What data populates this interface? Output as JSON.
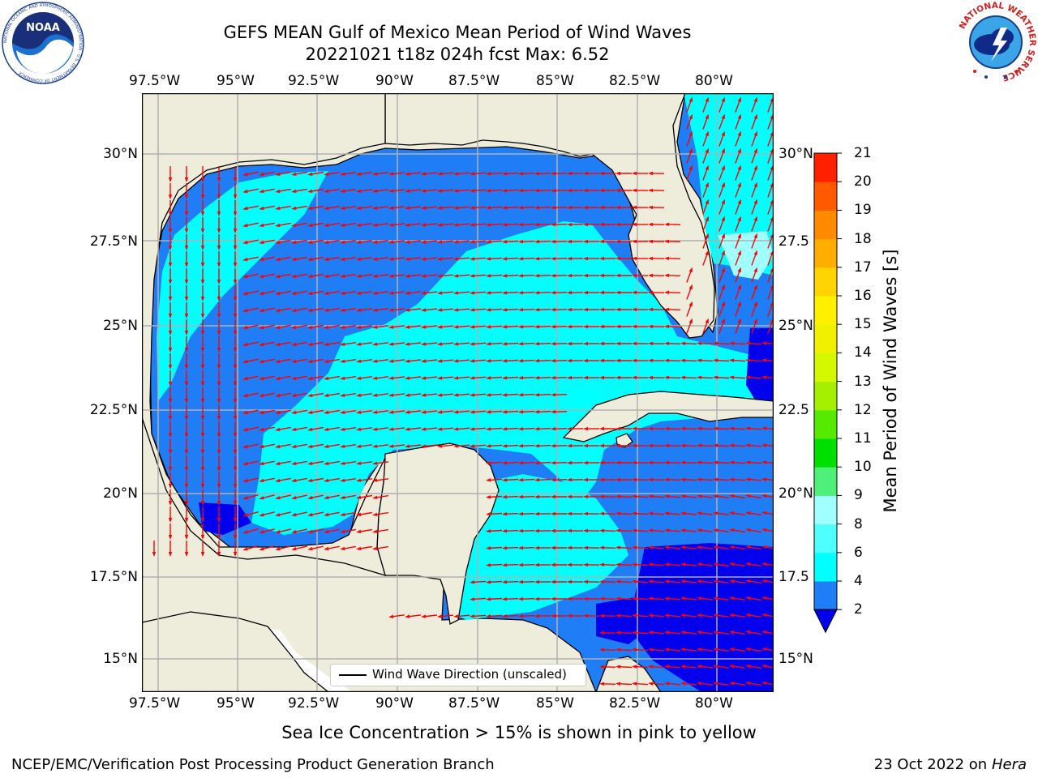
{
  "title": {
    "line1": "GEFS MEAN Gulf of Mexico Mean Period of Wind Waves",
    "line2": "20221021 t18z 024h fcst   Max: 6.52"
  },
  "map": {
    "lon_ticks": [
      "97.5°W",
      "95°W",
      "92.5°W",
      "90°W",
      "87.5°W",
      "85°W",
      "82.5°W",
      "80°W"
    ],
    "lat_ticks_left": [
      "30°N",
      "27.5°N",
      "25°N",
      "22.5°N",
      "20°N",
      "17.5°N",
      "15°N"
    ],
    "lat_ticks_right": [
      "30°N",
      "27.5",
      "25°N",
      "22.5",
      "20°N",
      "17.5",
      "15°N"
    ],
    "lon_range": [
      -98,
      -78.2
    ],
    "lat_range": [
      14,
      31.6
    ],
    "colors": {
      "land": "#eeeddc",
      "ocean_2_4": "#1f7df5",
      "ocean_4_6": "#00ffff",
      "ocean_0_2": "#0000ee",
      "arrow": "#ff0000",
      "grid": "#b0b0b0"
    },
    "arrows_description": "red wind wave direction arrows"
  },
  "legend": {
    "label": "Wind Wave Direction (unscaled)"
  },
  "colorbar": {
    "label": "Mean Period of Wind Waves [s]",
    "ticks": [
      "2",
      "4",
      "6",
      "8",
      "9",
      "10",
      "11",
      "12",
      "13",
      "14",
      "15",
      "16",
      "17",
      "18",
      "19",
      "20",
      "21"
    ],
    "colors": [
      "#1f7df5",
      "#00ffff",
      "#4dffff",
      "#a0ffff",
      "#4ff07a",
      "#00e000",
      "#55ea00",
      "#a4f000",
      "#d4f800",
      "#f0f000",
      "#fff000",
      "#ffd400",
      "#ffae00",
      "#ff8a00",
      "#ff5a00",
      "#ff2000"
    ],
    "under_color": "#0000ee"
  },
  "note": "Sea Ice Concentration > 15% is shown in pink to yellow",
  "footer": {
    "left": "NCEP/EMC/Verification Post Processing Product Generation Branch",
    "right_prefix": "23 Oct 2022 on ",
    "right_host": "Hera"
  },
  "logos": {
    "noaa_text": "NOAA",
    "noaa_ring_text": "NATIONAL OCEANIC AND ATMOSPHERIC ADMINISTRATION · U.S. DEPARTMENT OF COMMERCE",
    "nws_ring_text": "NATIONAL WEATHER SERVICE"
  }
}
